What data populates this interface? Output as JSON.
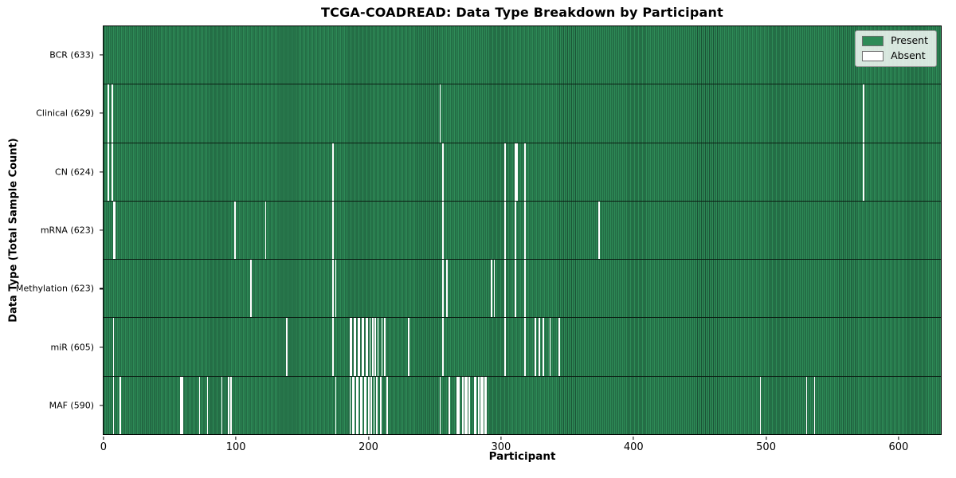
{
  "colors": {
    "present": "#2e8b57",
    "absent": "#ffffff",
    "grid_line": "#1b5236",
    "row_separator": "#0b1f14",
    "axis": "#000000",
    "legend_border": "#9a9a9a"
  },
  "chart_data": {
    "type": "heatmap",
    "title": "TCGA-COADREAD: Data Type Breakdown by Participant",
    "xlabel": "Participant",
    "ylabel": "Data Type (Total Sample Count)",
    "n_participants": 633,
    "x_ticks": [
      0,
      100,
      200,
      300,
      400,
      500,
      600
    ],
    "legend_position": "upper right",
    "legend": [
      {
        "label": "Present",
        "color": "#2e8b57"
      },
      {
        "label": "Absent",
        "color": "#ffffff"
      }
    ],
    "rows": [
      {
        "name": "BCR",
        "label": "BCR (633)",
        "present_count": 633,
        "absent_participants": []
      },
      {
        "name": "Clinical",
        "label": "Clinical (629)",
        "present_count": 629,
        "absent_participants": [
          3,
          6,
          254,
          574
        ]
      },
      {
        "name": "CN",
        "label": "CN (624)",
        "present_count": 624,
        "absent_participants": [
          3,
          6,
          173,
          256,
          303,
          311,
          312,
          318,
          574
        ]
      },
      {
        "name": "mRNA",
        "label": "mRNA (623)",
        "present_count": 623,
        "absent_participants": [
          7,
          8,
          99,
          122,
          173,
          256,
          303,
          311,
          318,
          374
        ]
      },
      {
        "name": "Methylation",
        "label": "Methylation (623)",
        "present_count": 623,
        "absent_participants": [
          111,
          173,
          175,
          256,
          259,
          293,
          295,
          303,
          311,
          318
        ]
      },
      {
        "name": "miR",
        "label": "miR (605)",
        "present_count": 605,
        "absent_participants": [
          7,
          138,
          173,
          186,
          187,
          189,
          190,
          192,
          193,
          195,
          196,
          198,
          199,
          201,
          203,
          205,
          207,
          210,
          212,
          230,
          256,
          303,
          318,
          326,
          329,
          332,
          337,
          344
        ]
      },
      {
        "name": "MAF",
        "label": "MAF (590)",
        "present_count": 590,
        "absent_participants": [
          7,
          12,
          58,
          59,
          72,
          78,
          89,
          94,
          96,
          175,
          186,
          188,
          189,
          191,
          192,
          194,
          195,
          197,
          198,
          200,
          202,
          204,
          206,
          209,
          214,
          254,
          261,
          267,
          268,
          271,
          273,
          274,
          276,
          280,
          281,
          283,
          285,
          286,
          288,
          289,
          496,
          531,
          537
        ]
      }
    ]
  }
}
